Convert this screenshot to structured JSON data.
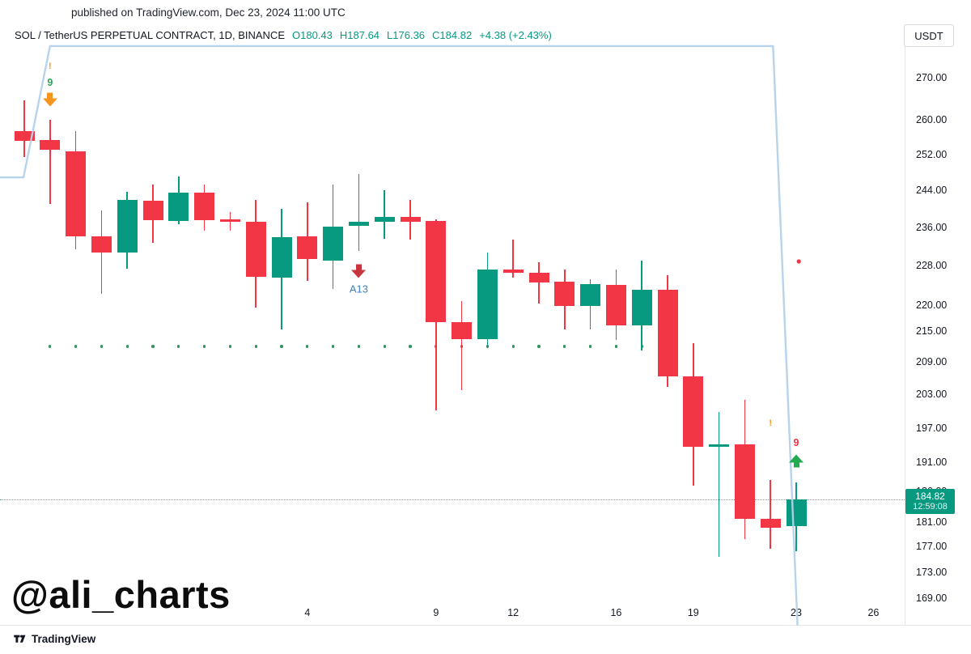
{
  "published_bar": {
    "text": "published on TradingView.com, Dec 23, 2024 11:00 UTC"
  },
  "header": {
    "symbol": "SOL / TetherUS PERPETUAL CONTRACT, 1D, BINANCE",
    "open_label": "O180.43",
    "high_label": "H187.64",
    "low_label": "L176.36",
    "close_label": "C184.82",
    "change_label": "+4.38 (+2.43%)",
    "currency": "USDT"
  },
  "price_label": {
    "price": "184.82",
    "countdown": "12:59:08"
  },
  "watermark": {
    "text": "@ali_charts"
  },
  "footer": {
    "brand": "TradingView"
  },
  "colors": {
    "up": "#089981",
    "down": "#f23645",
    "header_values": "#089981",
    "drawing_blue": "#b3d2ea",
    "dots_green": "#33935b",
    "digit_green": "#2aa35a",
    "digit_red": "#f23645",
    "marker_orange": "#f7941d",
    "marker_red_arrow": "#c9353f",
    "marker_green_arrow": "#22ab50",
    "label_blue": "#3b82c4",
    "axis_text": "#131722"
  },
  "chart_data": {
    "type": "candlestick",
    "title": "SOL / TetherUS PERPETUAL CONTRACT, 1D, BINANCE",
    "price_scale": "logarithmic",
    "ylim": [
      165,
      278
    ],
    "y_ticks": [
      "270.00",
      "260.00",
      "252.00",
      "244.00",
      "236.00",
      "228.00",
      "220.00",
      "215.00",
      "209.00",
      "203.00",
      "197.00",
      "191.00",
      "186.00",
      "181.00",
      "177.00",
      "173.00",
      "169.00"
    ],
    "x_ticks": [
      {
        "label": "4",
        "index": 11
      },
      {
        "label": "9",
        "index": 16
      },
      {
        "label": "12",
        "index": 19
      },
      {
        "label": "16",
        "index": 23
      },
      {
        "label": "19",
        "index": 26
      },
      {
        "label": "23",
        "index": 30
      },
      {
        "label": "26",
        "index": 33
      }
    ],
    "candles_ohlc": [
      [
        257.5,
        264.7,
        251.5,
        255.3
      ],
      [
        255.5,
        260.2,
        241.2,
        253.2
      ],
      [
        252.9,
        257.6,
        231.5,
        234.3
      ],
      [
        234.3,
        239.7,
        222.4,
        230.9
      ],
      [
        230.8,
        243.9,
        227.5,
        242.1
      ],
      [
        241.9,
        245.4,
        232.9,
        237.7
      ],
      [
        237.5,
        247.2,
        236.8,
        243.7
      ],
      [
        243.7,
        245.4,
        235.5,
        237.7
      ],
      [
        237.9,
        239.4,
        235.5,
        237.4
      ],
      [
        237.3,
        242.0,
        219.7,
        225.8
      ],
      [
        225.7,
        240.1,
        215.4,
        234.1
      ],
      [
        234.3,
        241.5,
        225.0,
        229.5
      ],
      [
        229.2,
        245.4,
        223.4,
        236.3
      ],
      [
        236.5,
        247.8,
        231.2,
        237.4
      ],
      [
        237.3,
        244.2,
        233.8,
        238.3
      ],
      [
        238.3,
        242.0,
        233.5,
        237.4
      ],
      [
        237.5,
        237.9,
        200.3,
        216.8
      ],
      [
        216.8,
        221.0,
        203.9,
        213.6
      ],
      [
        213.6,
        230.9,
        212.1,
        227.3
      ],
      [
        227.3,
        233.5,
        225.7,
        226.7
      ],
      [
        226.7,
        228.8,
        220.5,
        224.7
      ],
      [
        224.9,
        227.3,
        215.4,
        220.0
      ],
      [
        220.0,
        225.4,
        215.4,
        224.3
      ],
      [
        224.2,
        227.4,
        213.4,
        216.2
      ],
      [
        216.2,
        229.2,
        211.3,
        223.2
      ],
      [
        223.2,
        226.2,
        204.5,
        206.5
      ],
      [
        206.5,
        212.8,
        187.1,
        193.8
      ],
      [
        193.8,
        199.9,
        175.5,
        194.2
      ],
      [
        194.2,
        202.1,
        178.4,
        181.6
      ],
      [
        181.6,
        188.1,
        176.8,
        180.2
      ],
      [
        180.43,
        187.64,
        176.36,
        184.82
      ]
    ],
    "last_price": 184.82,
    "dots_line": {
      "price": 212.1,
      "from_index": 1,
      "to_index": 24
    },
    "price_line": {
      "price": 184.82
    },
    "markers": [
      {
        "type": "exclamation",
        "text": "!",
        "color_key": "marker_orange",
        "index": 1,
        "price": 273
      },
      {
        "type": "digit",
        "text": "9",
        "color_key": "digit_green",
        "index": 1,
        "price": 269
      },
      {
        "type": "arrow-down",
        "color_key": "marker_orange",
        "index": 1,
        "price": 265
      },
      {
        "type": "arrow-down",
        "color_key": "marker_red_arrow",
        "index": 13,
        "price": 227,
        "label": "A13",
        "label_color_key": "label_blue"
      },
      {
        "type": "exclamation",
        "text": "!",
        "color_key": "marker_orange",
        "index": 29,
        "price": 198
      },
      {
        "type": "digit",
        "text": "9",
        "color_key": "digit_red",
        "index": 30,
        "price": 194.5
      },
      {
        "type": "arrow-up",
        "color_key": "marker_green_arrow",
        "index": 30,
        "price": 191.3
      },
      {
        "type": "alert-dot",
        "color_key": "down",
        "index": 30.1,
        "price": 229
      }
    ],
    "drawings": {
      "trendline_points": [
        {
          "index": -0.94,
          "price": 247
        },
        {
          "index": -0.03,
          "price": 247
        },
        {
          "index": 1.0,
          "price": 278
        },
        {
          "index": 29.1,
          "price": 278
        },
        {
          "index": 30.05,
          "price": 165
        }
      ]
    }
  }
}
